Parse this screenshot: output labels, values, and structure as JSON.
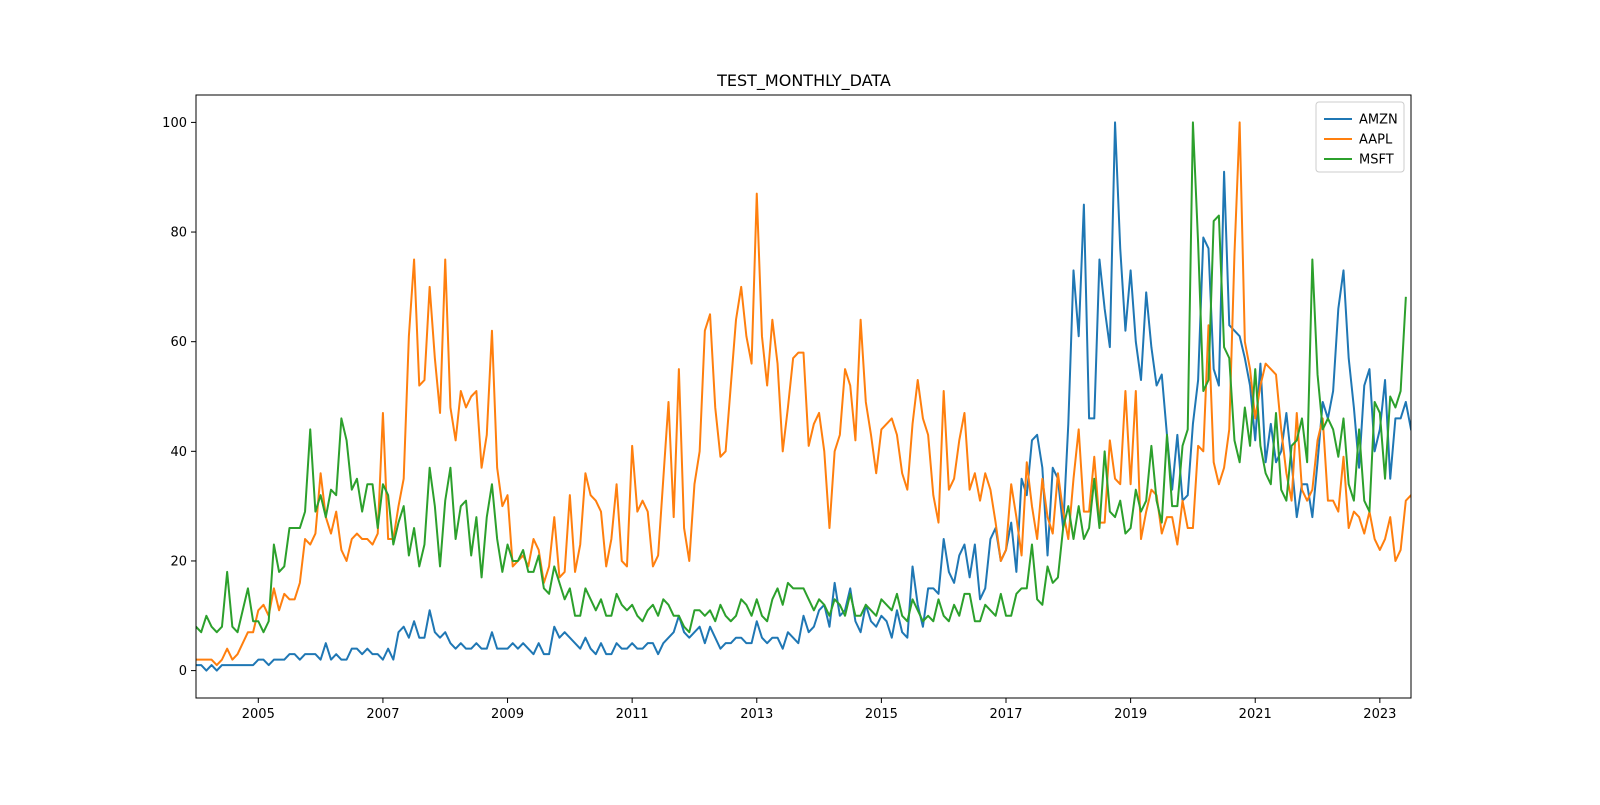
{
  "chart_data": {
    "type": "line",
    "title": "TEST_MONTHLY_DATA",
    "xlabel": "",
    "ylabel": "",
    "x_start": "2004-01",
    "x_end": "2023-07",
    "xlim": [
      2004.0,
      2023.5
    ],
    "ylim": [
      -5,
      105
    ],
    "x_ticks": [
      2005,
      2007,
      2009,
      2011,
      2013,
      2015,
      2017,
      2019,
      2021,
      2023
    ],
    "y_ticks": [
      0,
      20,
      40,
      60,
      80,
      100
    ],
    "grid": false,
    "legend_position": "top-right",
    "series": [
      {
        "name": "AMZN",
        "color": "#1f77b4",
        "values": [
          1,
          1,
          0,
          1,
          0,
          1,
          1,
          1,
          1,
          1,
          1,
          1,
          2,
          2,
          1,
          2,
          2,
          2,
          3,
          3,
          2,
          3,
          3,
          3,
          2,
          5,
          2,
          3,
          2,
          2,
          4,
          4,
          3,
          4,
          3,
          3,
          2,
          4,
          2,
          7,
          8,
          6,
          9,
          6,
          6,
          11,
          7,
          6,
          7,
          5,
          4,
          5,
          4,
          4,
          5,
          4,
          4,
          7,
          4,
          4,
          4,
          5,
          4,
          5,
          4,
          3,
          5,
          3,
          3,
          8,
          6,
          7,
          6,
          5,
          4,
          6,
          4,
          3,
          5,
          3,
          3,
          5,
          4,
          4,
          5,
          4,
          4,
          5,
          5,
          3,
          5,
          6,
          7,
          10,
          7,
          6,
          7,
          8,
          5,
          8,
          6,
          4,
          5,
          5,
          6,
          6,
          5,
          5,
          9,
          6,
          5,
          6,
          6,
          4,
          7,
          6,
          5,
          10,
          7,
          8,
          11,
          12,
          8,
          16,
          10,
          11,
          15,
          9,
          7,
          12,
          9,
          8,
          10,
          9,
          6,
          11,
          7,
          6,
          19,
          12,
          8,
          15,
          15,
          14,
          24,
          18,
          16,
          21,
          23,
          17,
          23,
          13,
          15,
          24,
          26,
          20,
          22,
          27,
          18,
          35,
          32,
          42,
          43,
          37,
          21,
          37,
          35,
          26,
          45,
          73,
          61,
          85,
          46,
          46,
          75,
          66,
          59,
          100,
          77,
          62,
          73,
          60,
          53,
          69,
          59,
          52,
          54,
          43,
          33,
          43,
          31,
          32,
          45,
          53,
          79,
          77,
          55,
          52,
          91,
          63,
          62,
          61,
          57,
          52,
          42,
          56,
          38,
          45,
          38,
          40,
          47,
          38,
          28,
          34,
          34,
          28,
          38,
          49,
          46,
          51,
          66,
          73,
          57,
          48,
          37,
          52,
          55,
          40,
          44,
          53,
          35,
          46,
          46,
          49,
          44
        ]
      },
      {
        "name": "AAPL",
        "color": "#ff7f0e",
        "values": [
          2,
          2,
          2,
          2,
          1,
          2,
          4,
          2,
          3,
          5,
          7,
          7,
          11,
          12,
          10,
          15,
          11,
          14,
          13,
          13,
          16,
          24,
          23,
          25,
          36,
          28,
          25,
          29,
          22,
          20,
          24,
          25,
          24,
          24,
          23,
          25,
          47,
          24,
          24,
          30,
          35,
          61,
          75,
          52,
          53,
          70,
          57,
          47,
          75,
          48,
          42,
          51,
          48,
          50,
          51,
          37,
          43,
          62,
          37,
          30,
          32,
          19,
          20,
          21,
          19,
          24,
          22,
          16,
          19,
          28,
          17,
          18,
          32,
          18,
          23,
          36,
          32,
          31,
          29,
          19,
          24,
          34,
          20,
          19,
          41,
          29,
          31,
          29,
          19,
          21,
          35,
          49,
          28,
          55,
          26,
          20,
          34,
          40,
          62,
          65,
          48,
          39,
          40,
          52,
          64,
          70,
          61,
          56,
          87,
          61,
          52,
          64,
          56,
          40,
          48,
          57,
          58,
          58,
          41,
          45,
          47,
          40,
          26,
          40,
          43,
          55,
          52,
          42,
          64,
          49,
          43,
          36,
          44,
          45,
          46,
          43,
          36,
          33,
          45,
          53,
          46,
          43,
          32,
          27,
          51,
          33,
          35,
          42,
          47,
          33,
          36,
          31,
          36,
          33,
          27,
          20,
          22,
          34,
          28,
          21,
          38,
          30,
          24,
          35,
          28,
          25,
          36,
          29,
          24,
          35,
          44,
          29,
          29,
          39,
          27,
          27,
          42,
          35,
          34,
          51,
          34,
          51,
          24,
          29,
          33,
          32,
          25,
          28,
          28,
          23,
          31,
          26,
          26,
          41,
          40,
          63,
          38,
          34,
          37,
          44,
          76,
          100,
          60,
          55,
          46,
          52,
          56,
          55,
          54,
          44,
          36,
          31,
          47,
          33,
          31,
          33,
          42,
          46,
          31,
          31,
          29,
          39,
          26,
          29,
          28,
          25,
          29,
          24,
          22,
          24,
          28,
          20,
          22,
          31,
          32,
          28
        ]
      },
      {
        "name": "MSFT",
        "color": "#2ca02c",
        "values": [
          8,
          7,
          10,
          8,
          7,
          8,
          18,
          8,
          7,
          11,
          15,
          9,
          9,
          7,
          9,
          23,
          18,
          19,
          26,
          26,
          26,
          29,
          44,
          29,
          32,
          28,
          33,
          32,
          46,
          42,
          33,
          35,
          29,
          34,
          34,
          26,
          34,
          32,
          23,
          27,
          30,
          21,
          26,
          19,
          23,
          37,
          30,
          19,
          31,
          37,
          24,
          30,
          31,
          21,
          28,
          17,
          28,
          34,
          24,
          18,
          23,
          20,
          20,
          22,
          18,
          18,
          21,
          15,
          14,
          19,
          16,
          13,
          15,
          10,
          10,
          15,
          13,
          11,
          13,
          10,
          10,
          14,
          12,
          11,
          12,
          10,
          9,
          11,
          12,
          10,
          13,
          12,
          10,
          10,
          8,
          7,
          11,
          11,
          10,
          11,
          9,
          12,
          10,
          9,
          10,
          13,
          12,
          10,
          13,
          10,
          9,
          13,
          15,
          12,
          16,
          15,
          15,
          15,
          13,
          11,
          13,
          12,
          10,
          13,
          12,
          10,
          14,
          10,
          10,
          12,
          11,
          10,
          13,
          12,
          11,
          14,
          10,
          9,
          13,
          11,
          9,
          10,
          9,
          13,
          10,
          9,
          12,
          10,
          14,
          14,
          9,
          9,
          12,
          11,
          10,
          14,
          10,
          10,
          14,
          15,
          15,
          23,
          13,
          12,
          19,
          16,
          17,
          26,
          30,
          24,
          30,
          24,
          26,
          35,
          26,
          40,
          29,
          28,
          31,
          25,
          26,
          33,
          29,
          31,
          41,
          31,
          27,
          43,
          30,
          30,
          41,
          44,
          100,
          78,
          51,
          53,
          82,
          83,
          59,
          57,
          42,
          38,
          48,
          41,
          55,
          41,
          36,
          34,
          47,
          33,
          31,
          41,
          42,
          46,
          38,
          75,
          54,
          44,
          46,
          44,
          39,
          46,
          34,
          31,
          44,
          31,
          29,
          49,
          47,
          35,
          50,
          48,
          51,
          68
        ]
      }
    ]
  }
}
